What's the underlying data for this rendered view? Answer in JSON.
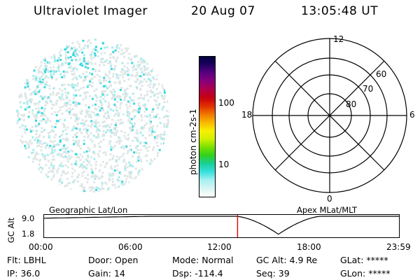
{
  "header": {
    "title": "Ultraviolet Imager",
    "date": "20 Aug 07",
    "time": "13:05:48 UT"
  },
  "colorbar": {
    "label": "photon cm-2s-1",
    "ticks": [
      "100",
      "10"
    ],
    "colors": [
      "#000040",
      "#200060",
      "#5a0080",
      "#8a007a",
      "#b00048",
      "#c80010",
      "#e03000",
      "#f07800",
      "#f8b800",
      "#f8f000",
      "#d0f000",
      "#78e000",
      "#30d020",
      "#18d098",
      "#38e0e0",
      "#a8f0f0",
      "#d8f4f4",
      "#ffffff"
    ]
  },
  "polar": {
    "labels": {
      "top": "12",
      "bottom": "0",
      "left": "18",
      "right": "6"
    },
    "lat_labels": [
      "60",
      "70",
      "80"
    ]
  },
  "timeline": {
    "left_label": "Geographic Lat/Lon",
    "right_label": "Apex MLat/MLT",
    "axis_title": "GC Alt",
    "y_ticks": [
      "9.0",
      "1.8"
    ],
    "x_ticks": [
      "00:00",
      "06:00",
      "12:00",
      "18:00",
      "23:59"
    ],
    "current_time_fraction": 0.545,
    "marker_color": "#e00000"
  },
  "status": {
    "row1": [
      {
        "label": "Flt:",
        "value": "LBHL"
      },
      {
        "label": "Door:",
        "value": "Open"
      },
      {
        "label": "Mode:",
        "value": "Normal"
      },
      {
        "label": "GC Alt:",
        "value": "4.9 Re"
      },
      {
        "label": "GLat:",
        "value": "*****"
      }
    ],
    "row2": [
      {
        "label": "IP:",
        "value": "36.0"
      },
      {
        "label": "Gain:",
        "value": "14"
      },
      {
        "label": "Dsp:",
        "value": "-114.4"
      },
      {
        "label": "Seq:",
        "value": "39"
      },
      {
        "label": "GLon:",
        "value": "*****"
      }
    ]
  }
}
